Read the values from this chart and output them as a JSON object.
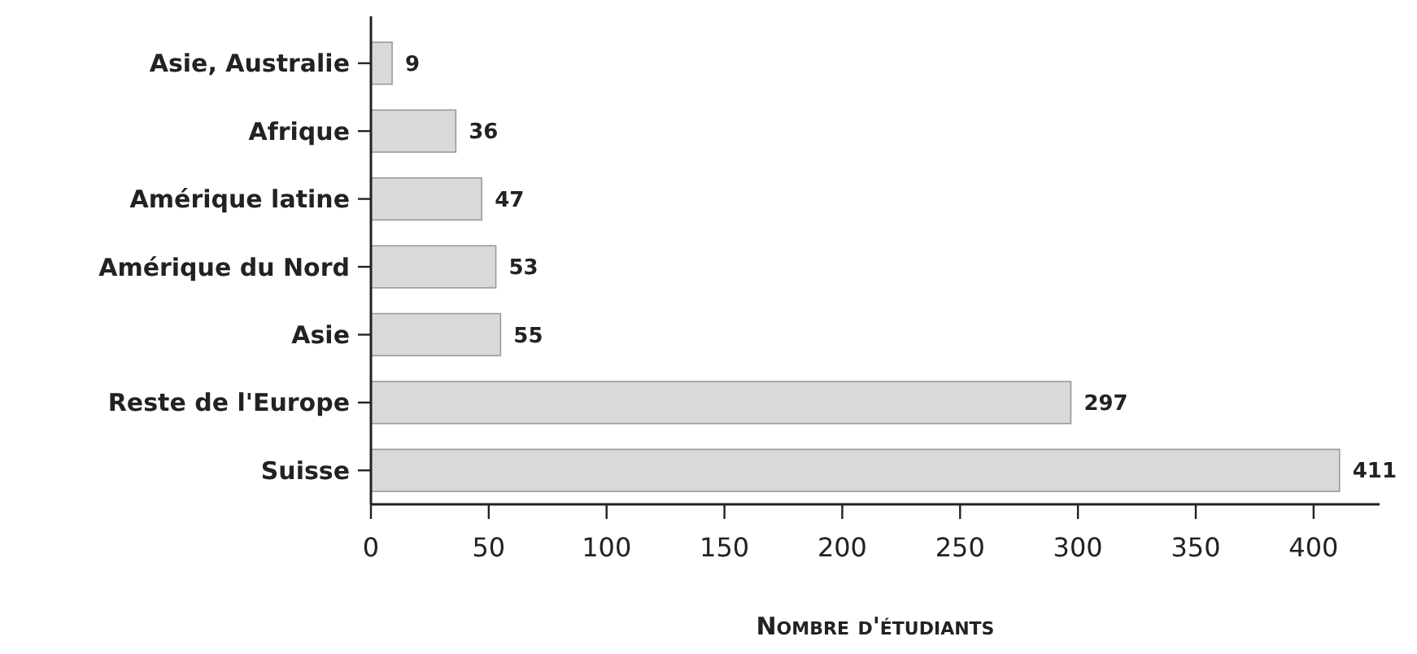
{
  "chart_data": {
    "type": "bar",
    "orientation": "horizontal",
    "xlabel": "Nombre d'étudiants",
    "categories": [
      "Asie, Australie",
      "Afrique",
      "Amérique latine",
      "Amérique du Nord",
      "Asie",
      "Reste de l'Europe",
      "Suisse"
    ],
    "values": [
      9,
      36,
      47,
      53,
      55,
      297,
      411
    ],
    "color": "#d9d9d9",
    "xlim": [
      0,
      428
    ],
    "xticks": [
      0,
      50,
      100,
      150,
      200,
      250,
      300,
      350,
      400
    ],
    "grid": false,
    "data_labels": true
  }
}
